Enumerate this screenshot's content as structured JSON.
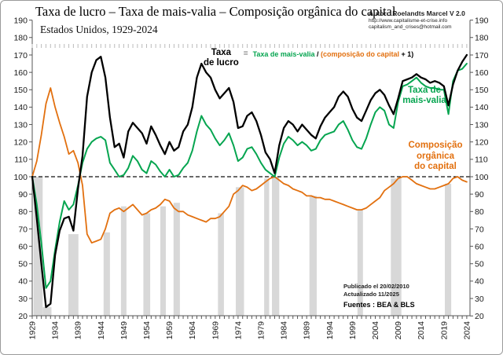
{
  "header": {
    "title": "Taxa de lucro – Taxa de mais-valia – Composição orgânica do capital",
    "subtitle": "Estados Unidos, 1929-2024",
    "author_line1": "Autor : Roelandts Marcel  V 2.0",
    "author_line2": "http://www.capitalisme-et-crise.info",
    "author_line3": "capitalism_and_crises@hotmail.com"
  },
  "formula": {
    "lhs_line1": "Taxa",
    "lhs_line2": "de lucro",
    "equals": "=",
    "rhs_green": "Taxa de mais-valia",
    "rhs_slash": " / ",
    "rhs_orange": "(composição do capital",
    "rhs_tail": " + 1)"
  },
  "labels": {
    "surplus_line1": "Taxa de",
    "surplus_line2": "mais-valia",
    "organic_line1": "Composição",
    "organic_line2": "orgânica",
    "organic_line3": "do capital"
  },
  "footnotes": {
    "published": "Publicado el 20/02/2010",
    "updated": "Actualizado 11/2025",
    "sources": "Fuentes : BEA & BLS"
  },
  "colors": {
    "profit": "#000000",
    "surplus": "#06A550",
    "organic": "#E2700F",
    "recession": "#D8D8D8",
    "axis": "#555555"
  },
  "chart_data": {
    "type": "line",
    "title": "Taxa de lucro – Taxa de mais-valia – Composição orgânica do capital",
    "subtitle": "Estados Unidos, 1929-2024",
    "x_start": 1929,
    "x_end": 2024,
    "xtick_label_step": 5,
    "ylim": [
      20,
      190
    ],
    "ytick_step": 10,
    "reference_line": 100,
    "index_note": "1929 = 100",
    "series": [
      {
        "id": "organic",
        "name": "Composição orgânica do capital",
        "color_key": "organic",
        "values": [
          100,
          109,
          124,
          142,
          151,
          140,
          131,
          123,
          113,
          115,
          108,
          95,
          67,
          62,
          63,
          64,
          70,
          79,
          81,
          82,
          80,
          82,
          84,
          81,
          78,
          79,
          81,
          82,
          84,
          87,
          86,
          82,
          80,
          80,
          78,
          77,
          76,
          75,
          74,
          76,
          76,
          77,
          80,
          83,
          90,
          92,
          95,
          94,
          92,
          93,
          95,
          97,
          99,
          100,
          98,
          96,
          95,
          93,
          92,
          91,
          89,
          89,
          88,
          88,
          87,
          87,
          86,
          85,
          84,
          83,
          82,
          81,
          81,
          82,
          84,
          86,
          88,
          92,
          94,
          96,
          99,
          100,
          100,
          98,
          96,
          95,
          94,
          93,
          93,
          94,
          95,
          96,
          99,
          100,
          98,
          97
        ]
      },
      {
        "id": "surplus",
        "name": "Taxa de mais-valia",
        "color_key": "surplus",
        "values": [
          100,
          84,
          62,
          36,
          40,
          58,
          74,
          86,
          81,
          84,
          95,
          108,
          116,
          120,
          122,
          123,
          121,
          108,
          104,
          100,
          101,
          105,
          112,
          109,
          104,
          102,
          109,
          107,
          103,
          100,
          104,
          100,
          101,
          105,
          108,
          115,
          126,
          135,
          130,
          127,
          122,
          118,
          121,
          125,
          118,
          109,
          111,
          116,
          117,
          113,
          108,
          104,
          102,
          100,
          111,
          119,
          123,
          121,
          118,
          120,
          118,
          115,
          116,
          121,
          124,
          125,
          126,
          130,
          132,
          127,
          121,
          117,
          116,
          122,
          130,
          137,
          140,
          138,
          130,
          128,
          143,
          152,
          153,
          155,
          157,
          154,
          152,
          151,
          151,
          150,
          150,
          136,
          155,
          161,
          162,
          165
        ]
      },
      {
        "id": "profit",
        "name": "Taxa de lucro",
        "color_key": "profit",
        "values": [
          100,
          76,
          50,
          25,
          27,
          55,
          69,
          76,
          77,
          69,
          93,
          112,
          146,
          160,
          167,
          169,
          157,
          134,
          117,
          119,
          111,
          126,
          131,
          128,
          125,
          119,
          129,
          124,
          118,
          113,
          120,
          115,
          117,
          126,
          130,
          140,
          157,
          165,
          160,
          157,
          150,
          145,
          148,
          151,
          143,
          128,
          129,
          135,
          137,
          132,
          124,
          114,
          110,
          102,
          118,
          128,
          132,
          130,
          126,
          130,
          127,
          124,
          122,
          129,
          134,
          137,
          140,
          146,
          149,
          146,
          139,
          134,
          132,
          138,
          144,
          148,
          150,
          147,
          141,
          136,
          145,
          155,
          156,
          157,
          159,
          157,
          156,
          154,
          155,
          154,
          152,
          141,
          153,
          161,
          166,
          170
        ]
      }
    ],
    "recession_bars": [
      [
        1929.3,
        1931.3,
        100
      ],
      [
        1931.3,
        1933.2,
        25
      ],
      [
        1936.9,
        1939.1,
        67
      ],
      [
        1944.6,
        1946.0,
        68
      ],
      [
        1948.4,
        1949.6,
        83
      ],
      [
        1953.3,
        1954.8,
        79
      ],
      [
        1957.0,
        1958.2,
        83
      ],
      [
        1959.9,
        1961.3,
        85
      ],
      [
        1969.6,
        1970.9,
        79
      ],
      [
        1973.5,
        1975.3,
        94
      ],
      [
        1979.7,
        1980.8,
        99
      ],
      [
        1981.4,
        1983.0,
        100
      ],
      [
        1989.6,
        1991.2,
        89
      ],
      [
        2000.1,
        2001.3,
        81
      ],
      [
        2007.4,
        2009.7,
        99
      ],
      [
        2019.2,
        2020.6,
        96
      ]
    ]
  }
}
